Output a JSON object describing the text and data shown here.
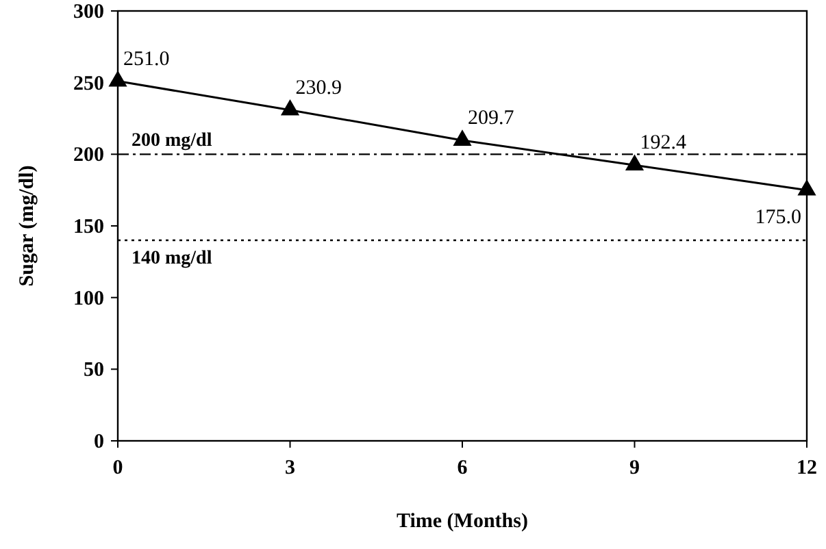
{
  "chart_data": {
    "type": "line",
    "xlabel": "Time (Months)",
    "ylabel": "Sugar (mg/dl)",
    "x": [
      0,
      3,
      6,
      9,
      12
    ],
    "series": [
      {
        "color": "#000000",
        "values": [
          251.0,
          230.9,
          209.7,
          192.4,
          175.0
        ],
        "value_labels": [
          "251.0",
          "230.9",
          "209.7",
          "192.4",
          "175.0"
        ]
      }
    ],
    "xlim": [
      0,
      12
    ],
    "xticks": [
      0,
      3,
      6,
      9,
      12
    ],
    "ylim": [
      0,
      300
    ],
    "yticks": [
      0,
      50,
      100,
      150,
      200,
      250,
      300
    ],
    "marker": "triangle",
    "line_style": "solid",
    "grid": false,
    "ref_lines": [
      {
        "axis": "y",
        "value": 200,
        "label": "200 mg/dl",
        "color": "#000000",
        "line_style": "dashdot"
      },
      {
        "axis": "y",
        "value": 140,
        "label": "140 mg/dl",
        "color": "#000000",
        "line_style": "dotted"
      }
    ]
  }
}
